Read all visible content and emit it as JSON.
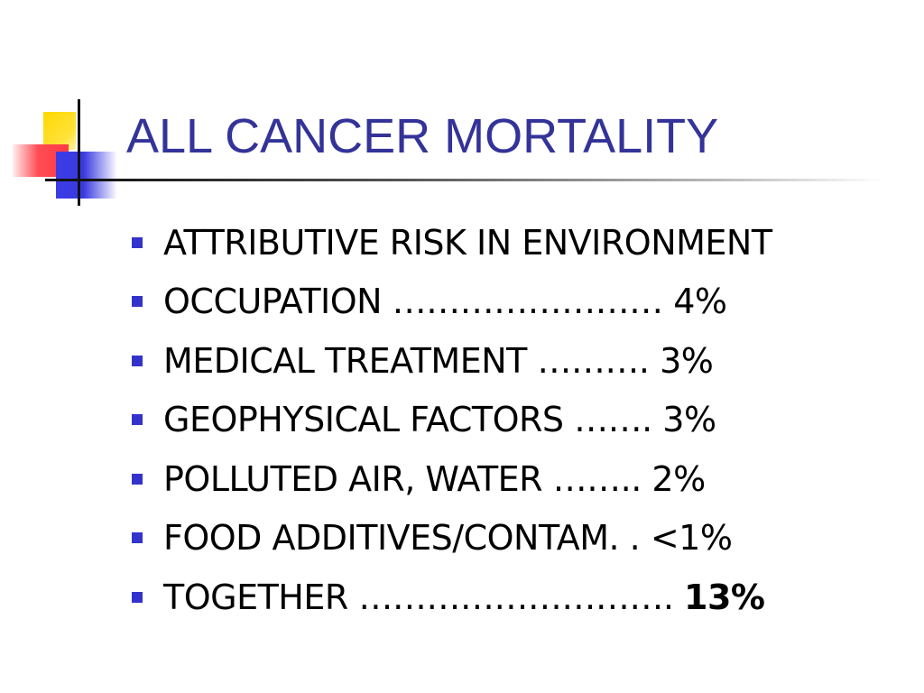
{
  "title": "ALL CANCER MORTALITY",
  "colors": {
    "title": "#333399",
    "bullet": "#3333cc",
    "text": "#000000"
  },
  "bullets": [
    {
      "text": "ATTRIBUTIVE RISK IN ENVIRONMENT",
      "value": ""
    },
    {
      "text": "OCCUPATION …………………… ",
      "value": "4%"
    },
    {
      "text": "MEDICAL TREATMENT ………. ",
      "value": "3%"
    },
    {
      "text": "GEOPHYSICAL FACTORS ……. ",
      "value": "3%"
    },
    {
      "text": "POLLUTED AIR, WATER …….. ",
      "value": "2%"
    },
    {
      "text": "FOOD ADDITIVES/CONTAM. . ",
      "value": "<1%"
    },
    {
      "text": "TOGETHER ………………………. ",
      "value": "13%"
    }
  ]
}
